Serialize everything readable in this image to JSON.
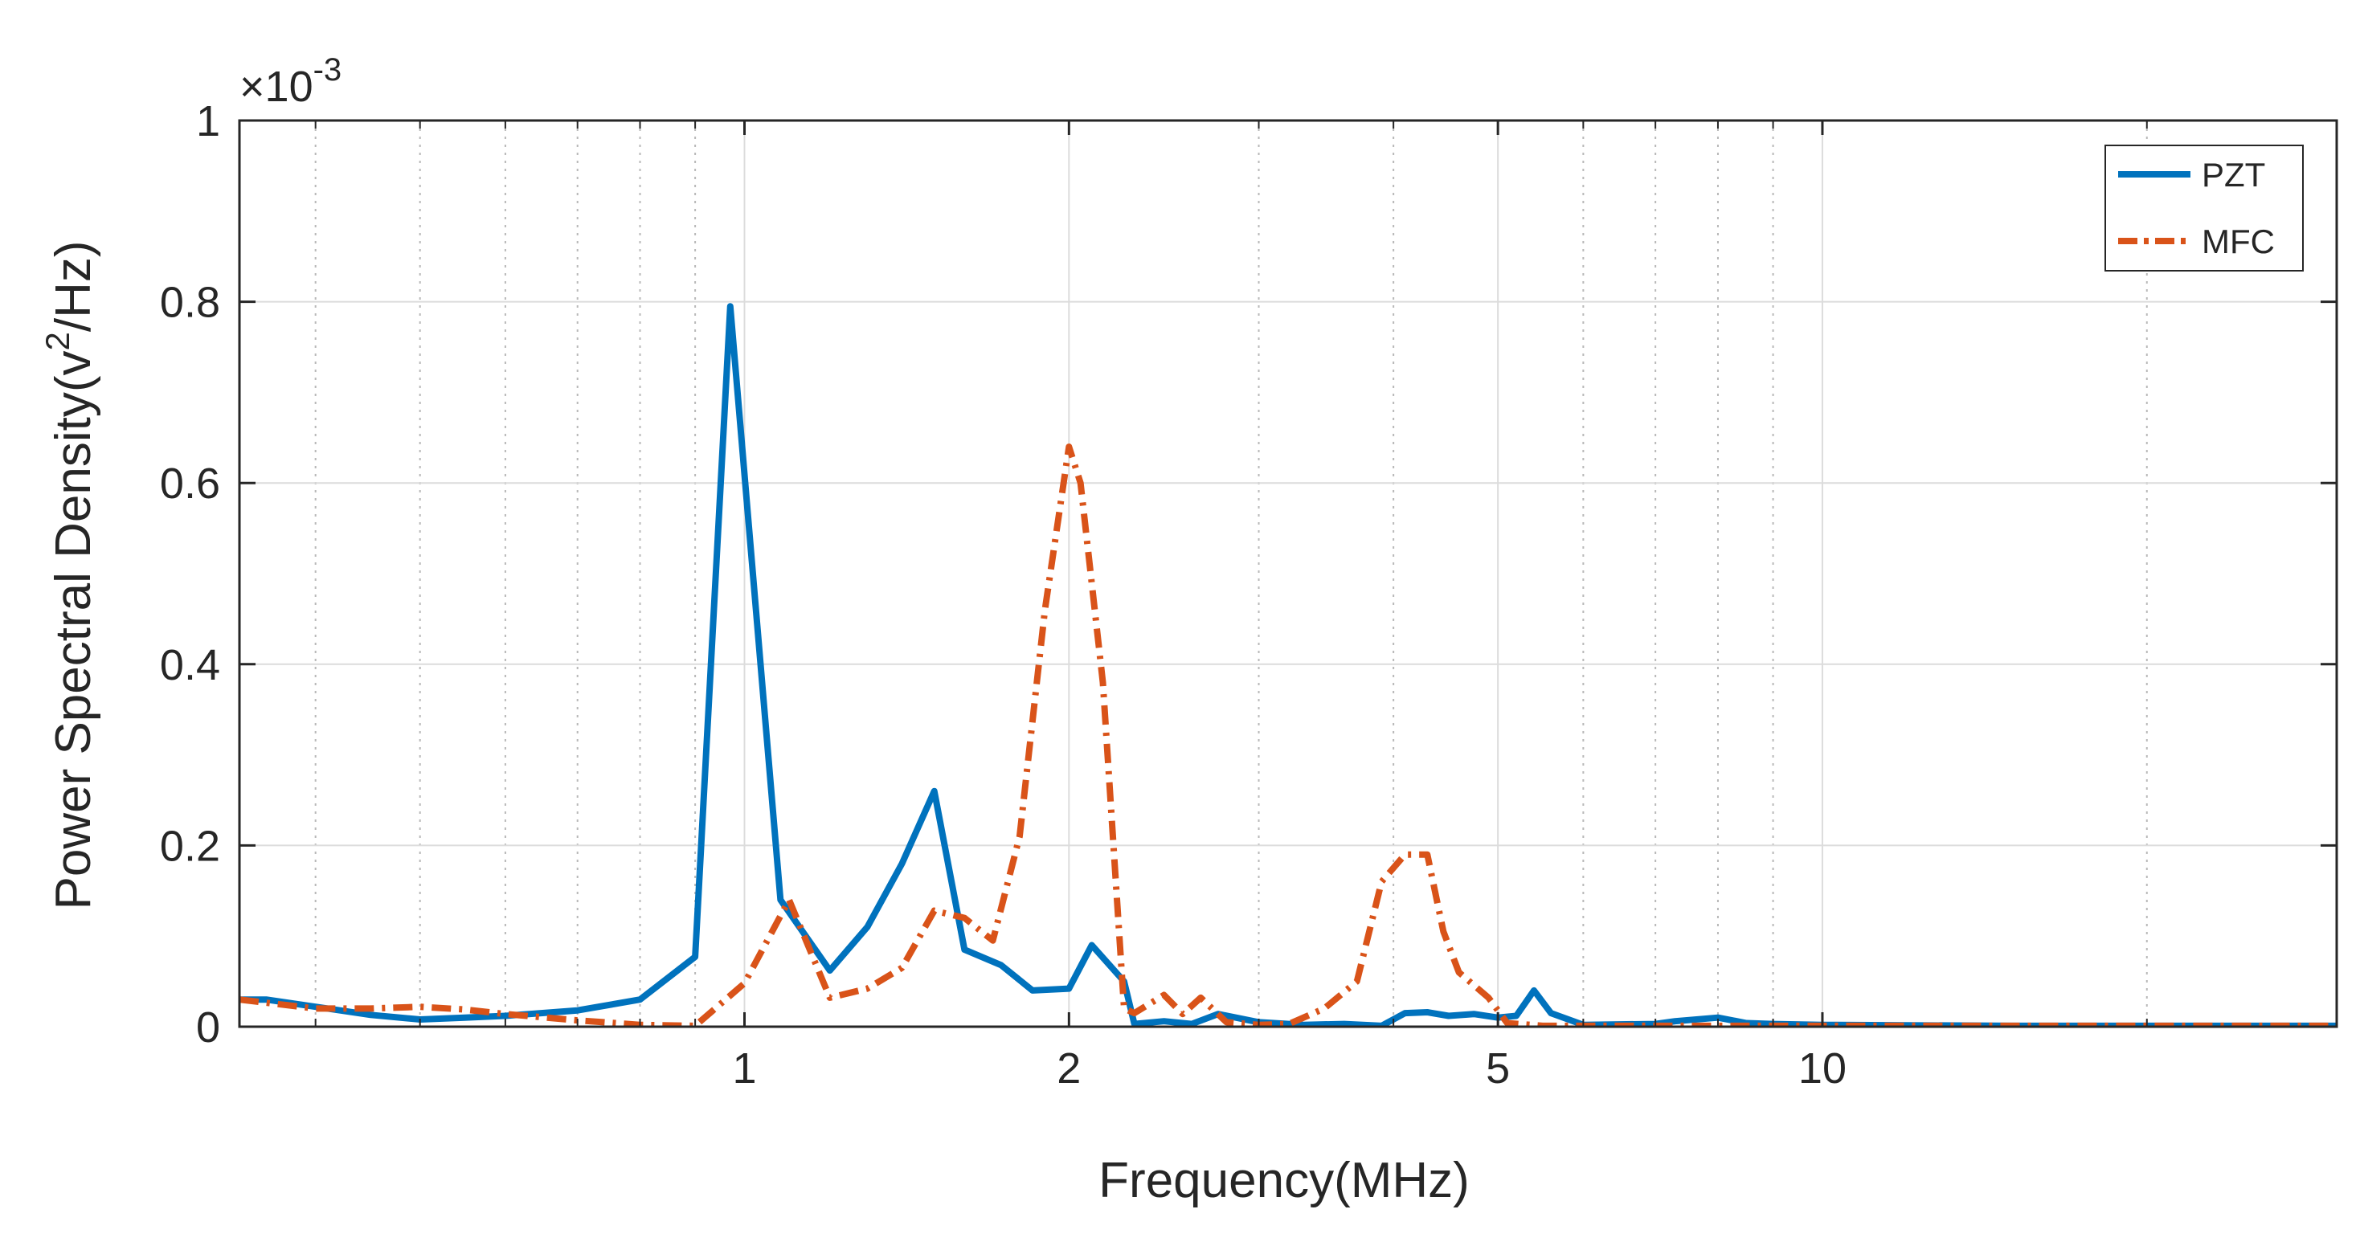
{
  "chart_data": {
    "type": "line",
    "xlabel": "Frequency(MHz)",
    "ylabel_main": "Power Spectral Density(v",
    "ylabel_sup": "2",
    "ylabel_end": "/Hz)",
    "y_exponent_base": "×10",
    "y_exponent_power": "-3",
    "x_scale": "log",
    "xlim": [
      0.34,
      30
    ],
    "ylim": [
      0,
      1
    ],
    "x_ticks": [
      1,
      2,
      5,
      10
    ],
    "x_tick_labels": [
      "1",
      "2",
      "5",
      "10"
    ],
    "x_minor_ticks": [
      0.4,
      0.5,
      0.6,
      0.7,
      0.8,
      0.9,
      3,
      4,
      6,
      7,
      8,
      9,
      20
    ],
    "y_ticks": [
      0,
      0.2,
      0.4,
      0.6,
      0.8,
      1
    ],
    "y_tick_labels": [
      "0",
      "0.2",
      "0.4",
      "0.6",
      "0.8",
      "1"
    ],
    "grid": true,
    "legend_position": "top-right",
    "series": [
      {
        "name": "PZT",
        "color": "#0072BD",
        "style": "solid",
        "x": [
          0.34,
          0.36,
          0.4,
          0.45,
          0.5,
          0.55,
          0.6,
          0.7,
          0.8,
          0.9,
          0.97,
          1.08,
          1.2,
          1.3,
          1.4,
          1.5,
          1.6,
          1.73,
          1.85,
          2.0,
          2.1,
          2.25,
          2.3,
          2.45,
          2.6,
          2.75,
          3.0,
          3.3,
          3.6,
          3.9,
          4.1,
          4.3,
          4.5,
          4.75,
          5.0,
          5.2,
          5.4,
          5.6,
          6.0,
          7.0,
          7.3,
          8.0,
          8.5,
          9.0,
          10,
          15,
          20,
          30
        ],
        "values": [
          0.03,
          0.03,
          0.022,
          0.013,
          0.008,
          0.01,
          0.012,
          0.018,
          0.03,
          0.077,
          0.795,
          0.14,
          0.062,
          0.11,
          0.18,
          0.26,
          0.085,
          0.068,
          0.04,
          0.042,
          0.09,
          0.05,
          0.003,
          0.006,
          0.003,
          0.014,
          0.005,
          0.002,
          0.003,
          0.001,
          0.015,
          0.016,
          0.012,
          0.014,
          0.01,
          0.012,
          0.04,
          0.015,
          0.002,
          0.003,
          0.006,
          0.01,
          0.004,
          0.003,
          0.002,
          0.001,
          0.001,
          0.001
        ]
      },
      {
        "name": "MFC",
        "color": "#D95319",
        "style": "dash-dot",
        "x": [
          0.34,
          0.4,
          0.45,
          0.5,
          0.55,
          0.6,
          0.7,
          0.8,
          0.9,
          1.0,
          1.1,
          1.2,
          1.3,
          1.4,
          1.5,
          1.6,
          1.7,
          1.8,
          1.9,
          2.0,
          2.05,
          2.15,
          2.25,
          2.3,
          2.45,
          2.55,
          2.65,
          2.8,
          3.0,
          3.2,
          3.45,
          3.7,
          3.9,
          4.1,
          4.3,
          4.45,
          4.6,
          4.9,
          5.1,
          5.5,
          5.8,
          6.0,
          7.0,
          8.0,
          9.0,
          10,
          15,
          20,
          30
        ],
        "values": [
          0.03,
          0.02,
          0.02,
          0.022,
          0.019,
          0.014,
          0.007,
          0.002,
          0.001,
          0.048,
          0.14,
          0.032,
          0.042,
          0.065,
          0.128,
          0.12,
          0.095,
          0.21,
          0.46,
          0.64,
          0.6,
          0.38,
          0.02,
          0.015,
          0.035,
          0.014,
          0.032,
          0.005,
          0.002,
          0.003,
          0.02,
          0.05,
          0.16,
          0.19,
          0.19,
          0.105,
          0.06,
          0.032,
          0.004,
          0.001,
          0.001,
          0.001,
          0.001,
          0.001,
          0.001,
          0.001,
          0.001,
          0.001,
          0.001
        ]
      }
    ]
  }
}
